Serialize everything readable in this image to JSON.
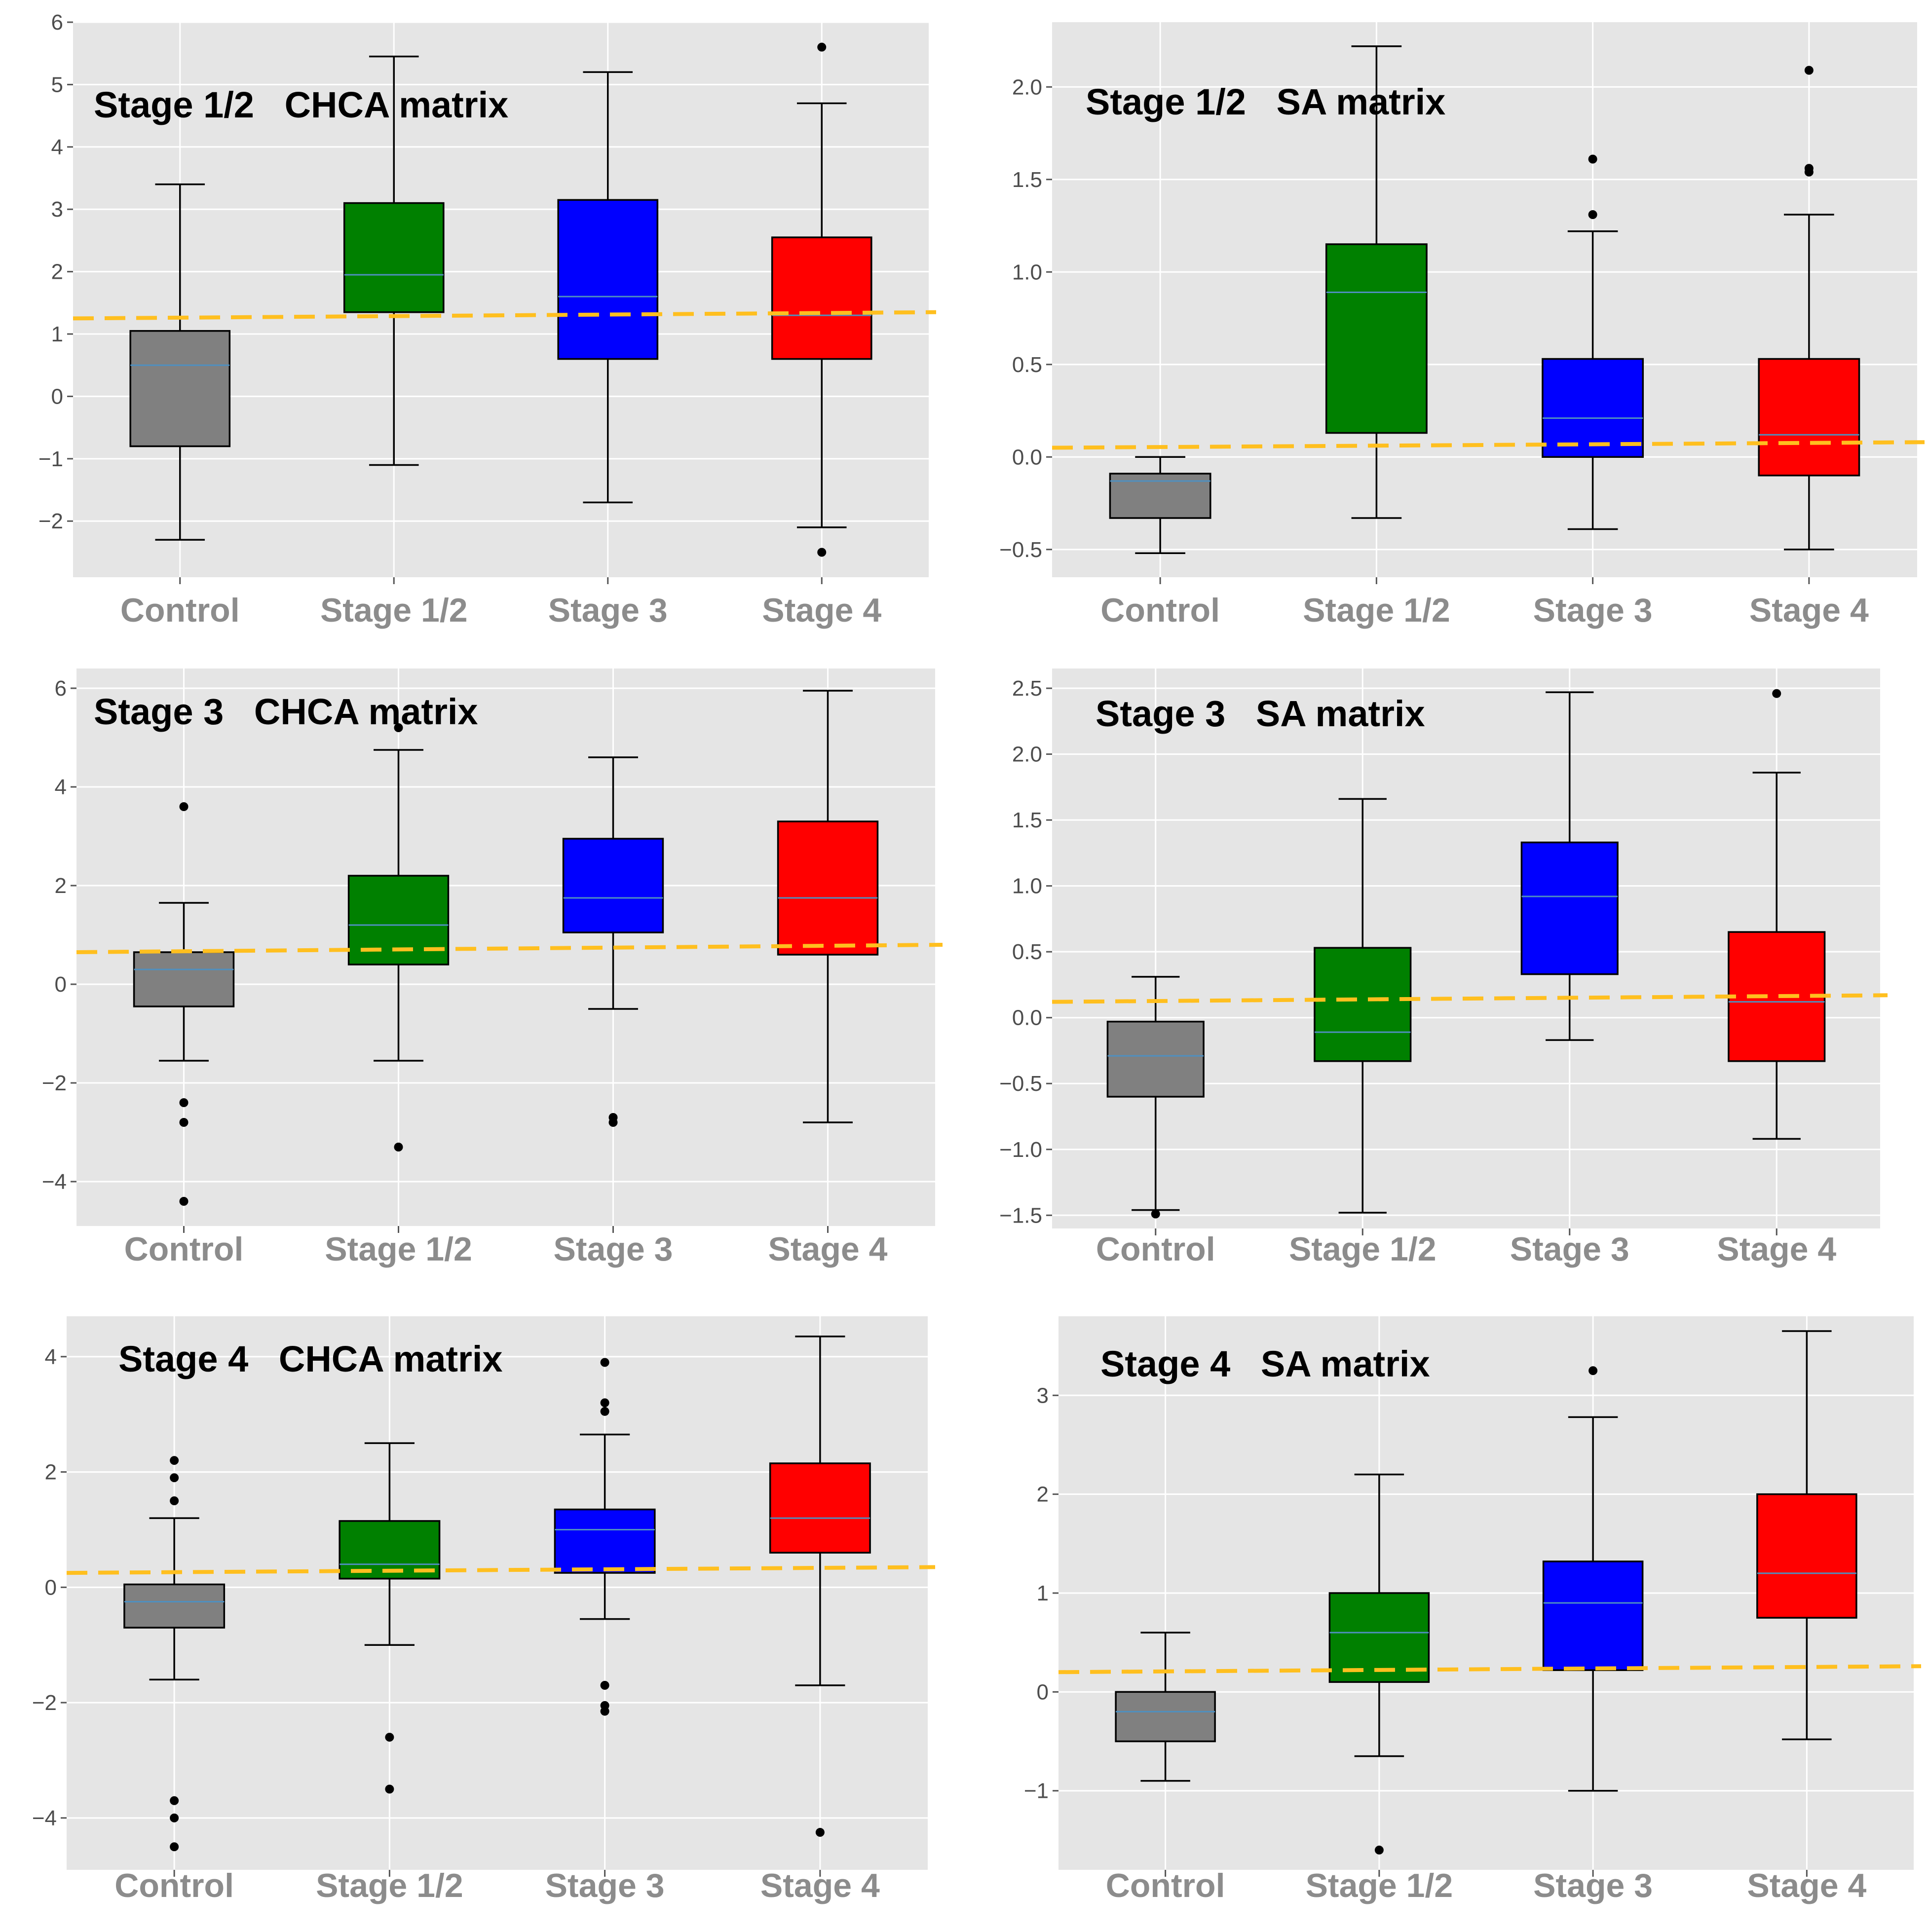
{
  "colors": {
    "panel_bg": "#e5e5e5",
    "grid": "#ffffff",
    "median": "#4f8fbf",
    "threshold": "#ffbf1f",
    "whisker": "#000000",
    "flier": "#000000",
    "tick_text": "#4d4d4d",
    "category_text": "#8c8c8c"
  },
  "chart_data": [
    {
      "type": "box",
      "title": "Stage 1/2   CHCA matrix",
      "categories": [
        "Control",
        "Stage 1/2",
        "Stage 3",
        "Stage 4"
      ],
      "box_colors": [
        "#808080",
        "#008000",
        "#0000ff",
        "#ff0000"
      ],
      "ylim": [
        -2.9,
        6.0
      ],
      "yticks": [
        -2,
        -1,
        0,
        1,
        2,
        3,
        4,
        5,
        6
      ],
      "ytick_labels": [
        "−2",
        "−1",
        "0",
        "1",
        "2",
        "3",
        "4",
        "5",
        "6"
      ],
      "boxes": [
        {
          "whislo": -2.3,
          "q1": -0.8,
          "med": 0.5,
          "q3": 1.05,
          "whishi": 3.4,
          "fliers": []
        },
        {
          "whislo": -1.1,
          "q1": 1.35,
          "med": 1.95,
          "q3": 3.1,
          "whishi": 5.45,
          "fliers": []
        },
        {
          "whislo": -1.7,
          "q1": 0.6,
          "med": 1.6,
          "q3": 3.15,
          "whishi": 5.2,
          "fliers": []
        },
        {
          "whislo": -2.1,
          "q1": 0.6,
          "med": 1.3,
          "q3": 2.55,
          "whishi": 4.7,
          "fliers": [
            5.6,
            -2.5
          ]
        }
      ],
      "threshold_line": [
        1.25,
        1.35
      ]
    },
    {
      "type": "box",
      "title": "Stage 1/2   SA matrix",
      "categories": [
        "Control",
        "Stage 1/2",
        "Stage 3",
        "Stage 4"
      ],
      "box_colors": [
        "#808080",
        "#008000",
        "#0000ff",
        "#ff0000"
      ],
      "ylim": [
        -0.65,
        2.35
      ],
      "yticks": [
        -0.5,
        0.0,
        0.5,
        1.0,
        1.5,
        2.0
      ],
      "ytick_labels": [
        "−0.5",
        "0.0",
        "0.5",
        "1.0",
        "1.5",
        "2.0"
      ],
      "boxes": [
        {
          "whislo": -0.52,
          "q1": -0.33,
          "med": -0.13,
          "q3": -0.09,
          "whishi": 0.0,
          "fliers": []
        },
        {
          "whislo": -0.33,
          "q1": 0.13,
          "med": 0.89,
          "q3": 1.15,
          "whishi": 2.22,
          "fliers": []
        },
        {
          "whislo": -0.39,
          "q1": 0.0,
          "med": 0.21,
          "q3": 0.53,
          "whishi": 1.22,
          "fliers": [
            1.61,
            1.31
          ]
        },
        {
          "whislo": -0.5,
          "q1": -0.1,
          "med": 0.12,
          "q3": 0.53,
          "whishi": 1.31,
          "fliers": [
            2.09,
            1.56,
            1.54
          ]
        }
      ],
      "threshold_line": [
        0.05,
        0.08
      ]
    },
    {
      "type": "box",
      "title": "Stage 3   CHCA matrix",
      "categories": [
        "Control",
        "Stage 1/2",
        "Stage 3",
        "Stage 4"
      ],
      "box_colors": [
        "#808080",
        "#008000",
        "#0000ff",
        "#ff0000"
      ],
      "ylim": [
        -4.9,
        6.4
      ],
      "yticks": [
        -4,
        -2,
        0,
        2,
        4,
        6
      ],
      "ytick_labels": [
        "−4",
        "−2",
        "0",
        "2",
        "4",
        "6"
      ],
      "boxes": [
        {
          "whislo": -1.55,
          "q1": -0.45,
          "med": 0.3,
          "q3": 0.65,
          "whishi": 1.65,
          "fliers": [
            3.6,
            -2.4,
            -2.8,
            -4.4
          ]
        },
        {
          "whislo": -1.55,
          "q1": 0.4,
          "med": 1.2,
          "q3": 2.2,
          "whishi": 4.75,
          "fliers": [
            5.2,
            -3.3
          ]
        },
        {
          "whislo": -0.5,
          "q1": 1.05,
          "med": 1.75,
          "q3": 2.95,
          "whishi": 4.6,
          "fliers": [
            -2.7,
            -2.8
          ]
        },
        {
          "whislo": -2.8,
          "q1": 0.6,
          "med": 1.75,
          "q3": 3.3,
          "whishi": 5.95,
          "fliers": []
        }
      ],
      "threshold_line": [
        0.65,
        0.8
      ]
    },
    {
      "type": "box",
      "title": "Stage 3   SA matrix",
      "categories": [
        "Control",
        "Stage 1/2",
        "Stage 3",
        "Stage 4"
      ],
      "box_colors": [
        "#808080",
        "#008000",
        "#0000ff",
        "#ff0000"
      ],
      "ylim": [
        -1.6,
        2.65
      ],
      "yticks": [
        -1.5,
        -1.0,
        -0.5,
        0.0,
        0.5,
        1.0,
        1.5,
        2.0,
        2.5
      ],
      "ytick_labels": [
        "−1.5",
        "−1.0",
        "−0.5",
        "0.0",
        "0.5",
        "1.0",
        "1.5",
        "2.0",
        "2.5"
      ],
      "boxes": [
        {
          "whislo": -1.46,
          "q1": -0.6,
          "med": -0.29,
          "q3": -0.03,
          "whishi": 0.31,
          "fliers": [
            -1.49
          ]
        },
        {
          "whislo": -1.48,
          "q1": -0.33,
          "med": -0.11,
          "q3": 0.53,
          "whishi": 1.66,
          "fliers": []
        },
        {
          "whislo": -0.17,
          "q1": 0.33,
          "med": 0.92,
          "q3": 1.33,
          "whishi": 2.47,
          "fliers": []
        },
        {
          "whislo": -0.92,
          "q1": -0.33,
          "med": 0.12,
          "q3": 0.65,
          "whishi": 1.86,
          "fliers": [
            2.46
          ]
        }
      ],
      "threshold_line": [
        0.12,
        0.17
      ]
    },
    {
      "type": "box",
      "title": "Stage 4   CHCA matrix",
      "categories": [
        "Control",
        "Stage 1/2",
        "Stage 3",
        "Stage 4"
      ],
      "box_colors": [
        "#808080",
        "#008000",
        "#0000ff",
        "#ff0000"
      ],
      "ylim": [
        -4.9,
        4.7
      ],
      "yticks": [
        -4,
        -2,
        0,
        2,
        4
      ],
      "ytick_labels": [
        "−4",
        "−2",
        "0",
        "2",
        "4"
      ],
      "boxes": [
        {
          "whislo": -1.6,
          "q1": -0.7,
          "med": -0.25,
          "q3": 0.05,
          "whishi": 1.2,
          "fliers": [
            2.2,
            1.9,
            1.5,
            -3.7,
            -4.0,
            -4.5
          ]
        },
        {
          "whislo": -1.0,
          "q1": 0.15,
          "med": 0.4,
          "q3": 1.15,
          "whishi": 2.5,
          "fliers": [
            -2.6,
            -3.5
          ]
        },
        {
          "whislo": -0.55,
          "q1": 0.25,
          "med": 1.0,
          "q3": 1.35,
          "whishi": 2.65,
          "fliers": [
            3.9,
            3.2,
            3.05,
            -1.7,
            -2.05,
            -2.15
          ]
        },
        {
          "whislo": -1.7,
          "q1": 0.6,
          "med": 1.2,
          "q3": 2.15,
          "whishi": 4.35,
          "fliers": [
            -4.25
          ]
        }
      ],
      "threshold_line": [
        0.25,
        0.35
      ]
    },
    {
      "type": "box",
      "title": "Stage 4   SA matrix",
      "categories": [
        "Control",
        "Stage 1/2",
        "Stage 3",
        "Stage 4"
      ],
      "box_colors": [
        "#808080",
        "#008000",
        "#0000ff",
        "#ff0000"
      ],
      "ylim": [
        -1.8,
        3.8
      ],
      "yticks": [
        -1,
        0,
        1,
        2,
        3
      ],
      "ytick_labels": [
        "−1",
        "0",
        "1",
        "2",
        "3"
      ],
      "boxes": [
        {
          "whislo": -0.9,
          "q1": -0.5,
          "med": -0.2,
          "q3": 0.0,
          "whishi": 0.6,
          "fliers": []
        },
        {
          "whislo": -0.65,
          "q1": 0.1,
          "med": 0.6,
          "q3": 1.0,
          "whishi": 2.2,
          "fliers": [
            -1.6
          ]
        },
        {
          "whislo": -1.0,
          "q1": 0.22,
          "med": 0.9,
          "q3": 1.32,
          "whishi": 2.78,
          "fliers": [
            3.25
          ]
        },
        {
          "whislo": -0.48,
          "q1": 0.75,
          "med": 1.2,
          "q3": 2.0,
          "whishi": 3.65,
          "fliers": []
        }
      ],
      "threshold_line": [
        0.2,
        0.26
      ]
    }
  ]
}
